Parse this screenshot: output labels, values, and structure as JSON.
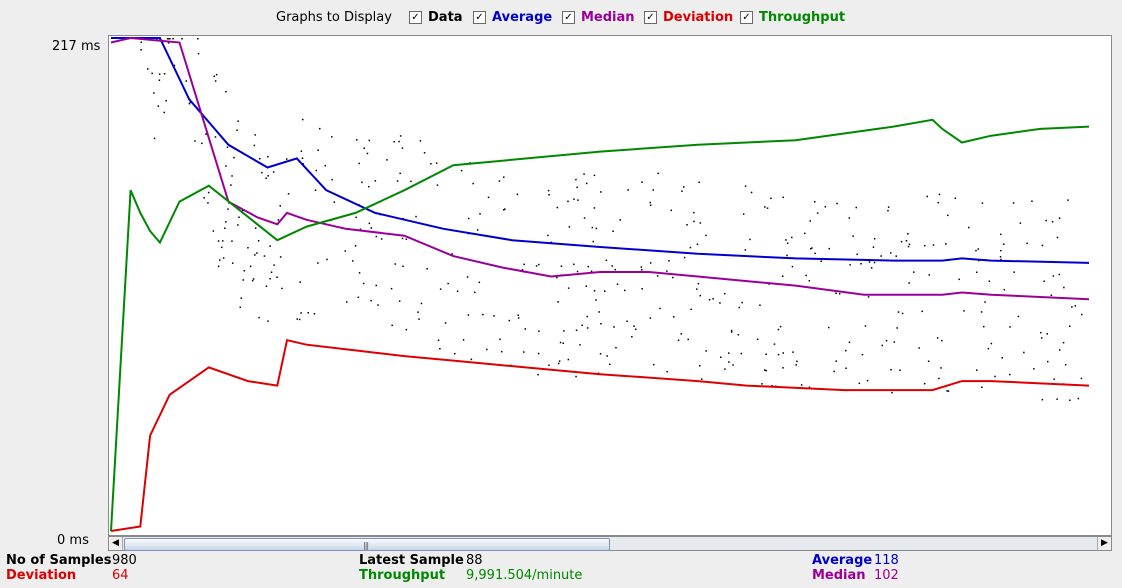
{
  "legend": {
    "title": "Graphs to Display",
    "items": [
      {
        "label": "Data",
        "color": "#000000",
        "checked": true
      },
      {
        "label": "Average",
        "color": "#0000cc",
        "checked": true
      },
      {
        "label": "Median",
        "color": "#990099",
        "checked": true
      },
      {
        "label": "Deviation",
        "color": "#dd0000",
        "checked": true
      },
      {
        "label": "Throughput",
        "color": "#008800",
        "checked": true
      }
    ]
  },
  "axis": {
    "y_max_label": "217 ms",
    "y_min_label": "0 ms"
  },
  "stats": {
    "samples_label": "No of Samples",
    "samples_value": "980",
    "latest_label": "Latest Sample",
    "latest_value": "88",
    "average_label": "Average",
    "average_value": "118",
    "deviation_label": "Deviation",
    "deviation_value": "64",
    "throughput_label": "Throughput",
    "throughput_value": "9,991.504/minute",
    "median_label": "Median",
    "median_value": "102"
  },
  "chart_data": {
    "type": "line",
    "ylim": [
      0,
      217
    ],
    "y_unit": "ms",
    "series": [
      {
        "name": "Average",
        "color": "#0000cc",
        "points": [
          [
            0,
            217
          ],
          [
            5,
            217
          ],
          [
            8,
            190
          ],
          [
            12,
            170
          ],
          [
            16,
            160
          ],
          [
            19,
            164
          ],
          [
            22,
            150
          ],
          [
            27,
            140
          ],
          [
            34,
            133
          ],
          [
            41,
            128
          ],
          [
            50,
            125
          ],
          [
            60,
            122
          ],
          [
            70,
            120
          ],
          [
            80,
            119
          ],
          [
            85,
            119
          ],
          [
            87,
            120
          ],
          [
            90,
            119
          ],
          [
            100,
            118
          ]
        ]
      },
      {
        "name": "Median",
        "color": "#990099",
        "points": [
          [
            0,
            215
          ],
          [
            2,
            217
          ],
          [
            7,
            215
          ],
          [
            12,
            145
          ],
          [
            15,
            138
          ],
          [
            17,
            135
          ],
          [
            18,
            140
          ],
          [
            20,
            137
          ],
          [
            24,
            133
          ],
          [
            30,
            130
          ],
          [
            35,
            121
          ],
          [
            40,
            116
          ],
          [
            45,
            112
          ],
          [
            50,
            114
          ],
          [
            55,
            114
          ],
          [
            60,
            112
          ],
          [
            65,
            110
          ],
          [
            70,
            108
          ],
          [
            77,
            104
          ],
          [
            85,
            104
          ],
          [
            87,
            105
          ],
          [
            90,
            104
          ],
          [
            100,
            102
          ]
        ]
      },
      {
        "name": "Deviation",
        "color": "#dd0000",
        "points": [
          [
            0,
            0
          ],
          [
            3,
            2
          ],
          [
            4,
            42
          ],
          [
            6,
            60
          ],
          [
            10,
            72
          ],
          [
            14,
            66
          ],
          [
            17,
            64
          ],
          [
            18,
            84
          ],
          [
            20,
            82
          ],
          [
            24,
            80
          ],
          [
            30,
            77
          ],
          [
            35,
            75
          ],
          [
            40,
            73
          ],
          [
            45,
            71
          ],
          [
            50,
            69
          ],
          [
            60,
            66
          ],
          [
            65,
            64
          ],
          [
            75,
            62
          ],
          [
            84,
            62
          ],
          [
            87,
            66
          ],
          [
            90,
            66
          ],
          [
            100,
            64
          ]
        ]
      },
      {
        "name": "Throughput",
        "color": "#008800",
        "points": [
          [
            0,
            0
          ],
          [
            2,
            150
          ],
          [
            3,
            140
          ],
          [
            4,
            132
          ],
          [
            5,
            127
          ],
          [
            7,
            145
          ],
          [
            10,
            152
          ],
          [
            17,
            128
          ],
          [
            20,
            134
          ],
          [
            25,
            140
          ],
          [
            30,
            150
          ],
          [
            35,
            161
          ],
          [
            40,
            163
          ],
          [
            50,
            167
          ],
          [
            60,
            170
          ],
          [
            70,
            172
          ],
          [
            80,
            178
          ],
          [
            84,
            181
          ],
          [
            85,
            177
          ],
          [
            87,
            171
          ],
          [
            90,
            174
          ],
          [
            95,
            177
          ],
          [
            100,
            178
          ]
        ]
      }
    ]
  }
}
